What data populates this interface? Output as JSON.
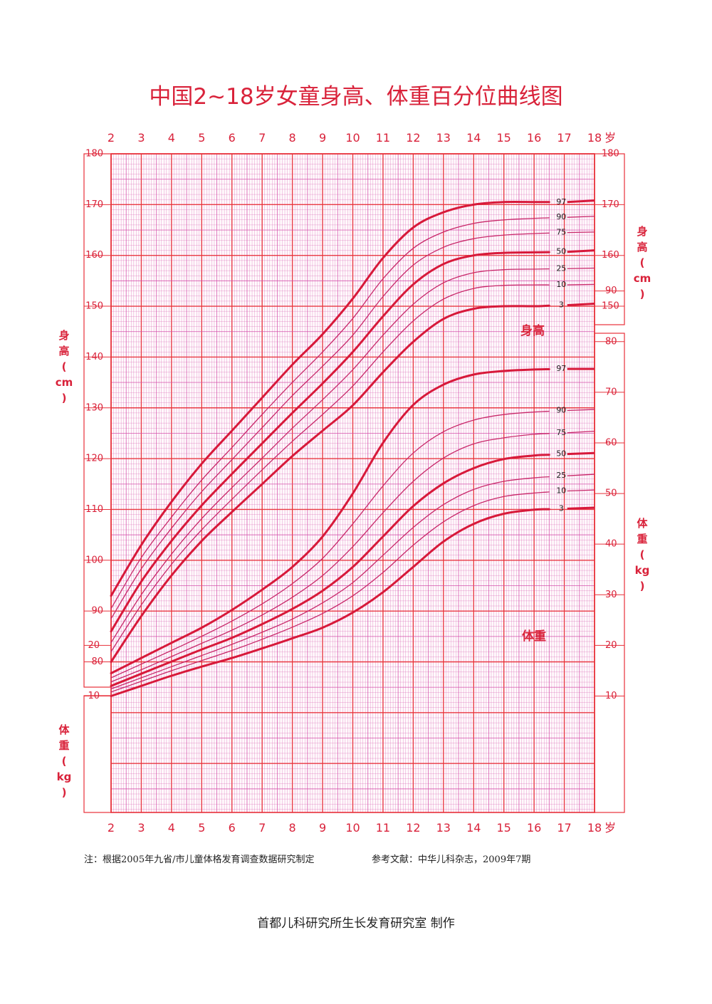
{
  "title": "中国2~18岁女童身高、体重百分位曲线图",
  "notes": {
    "source": "注：根据2005年九省/市儿童体格发育调查数据研究制定",
    "reference": "参考文献：中华儿科杂志，2009年7期",
    "maker": "首都儿科研究所生长发育研究室 制作"
  },
  "colors": {
    "grid_red": "#e8303a",
    "grid_magenta": "#d24aa8",
    "curve_bold": "#d7193a",
    "curve_thin": "#c8286a",
    "text": "#d9223a"
  },
  "chart_data": {
    "type": "line",
    "title": "中国2~18岁女童身高、体重百分位曲线图",
    "x": [
      2,
      3,
      4,
      5,
      6,
      7,
      8,
      9,
      10,
      11,
      12,
      13,
      14,
      15,
      16,
      17,
      18
    ],
    "x_unit": "岁",
    "xlim": [
      2,
      18
    ],
    "height_axis": {
      "label_chars": [
        "身",
        "高",
        "(",
        "cm",
        ")"
      ],
      "range": [
        70,
        180
      ],
      "ticks": [
        80,
        90,
        100,
        110,
        120,
        130,
        140,
        150,
        160,
        170,
        180
      ],
      "right_ticks": [
        150,
        160,
        170,
        180
      ]
    },
    "weight_axis": {
      "label_chars": [
        "体",
        "重",
        "(",
        "kg",
        ")"
      ],
      "range": [
        0,
        95
      ],
      "left_ticks": [
        10,
        20
      ],
      "right_ticks": [
        10,
        20,
        30,
        40,
        50,
        60,
        70,
        80,
        90
      ]
    },
    "height_label": "身高",
    "weight_label": "体重",
    "height_series": [
      {
        "name": "97",
        "bold": true,
        "values": [
          93,
          103,
          111.5,
          119,
          125.5,
          132,
          138.5,
          144.5,
          151.5,
          159.5,
          165.5,
          168.5,
          170,
          170.5,
          170.5,
          170.5,
          170.8
        ]
      },
      {
        "name": "90",
        "bold": false,
        "values": [
          90.5,
          100.5,
          108.5,
          115.8,
          122.2,
          128.7,
          135,
          141,
          147.6,
          155.4,
          161.4,
          164.6,
          166.3,
          167,
          167.3,
          167.5,
          167.7
        ]
      },
      {
        "name": "75",
        "bold": false,
        "values": [
          88.5,
          98.3,
          106.3,
          113.5,
          119.8,
          126.1,
          132.4,
          138.2,
          144.3,
          151.9,
          158.1,
          161.6,
          163.3,
          164,
          164.3,
          164.5,
          164.6
        ]
      },
      {
        "name": "50",
        "bold": true,
        "values": [
          86,
          95.8,
          103.8,
          110.8,
          117,
          123,
          129,
          134.8,
          141,
          148,
          154.3,
          158.3,
          160.0,
          160.5,
          160.6,
          160.7,
          161
        ]
      },
      {
        "name": "25",
        "bold": false,
        "values": [
          83.8,
          93.2,
          101.2,
          108.2,
          114.3,
          120.1,
          126.0,
          131.6,
          137.5,
          144.3,
          150.4,
          154.6,
          156.6,
          157.2,
          157.3,
          157.4,
          157.5
        ]
      },
      {
        "name": "10",
        "bold": false,
        "values": [
          82,
          91.2,
          99.2,
          106,
          112,
          117.8,
          123.4,
          128.7,
          134.3,
          141,
          147.1,
          151.4,
          153.5,
          154.1,
          154.2,
          154.2,
          154.3
        ]
      },
      {
        "name": "3",
        "bold": true,
        "values": [
          80,
          89,
          97,
          103.8,
          109.5,
          115,
          120.5,
          125.5,
          130.5,
          137,
          143,
          147.5,
          149.5,
          150,
          150,
          150.2,
          150.5
        ]
      }
    ],
    "weight_series": [
      {
        "name": "97",
        "bold": true,
        "values": [
          14.5,
          17.5,
          20.5,
          23.5,
          27,
          31,
          35.5,
          41.5,
          50,
          60,
          67.5,
          71.5,
          73.5,
          74.2,
          74.5,
          74.6,
          74.6
        ]
      },
      {
        "name": "90",
        "bold": false,
        "values": [
          13.6,
          16.3,
          19,
          21.8,
          24.8,
          28.2,
          32.2,
          37.2,
          44,
          51.5,
          58,
          62.2,
          64.5,
          65.6,
          66.1,
          66.4,
          66.6
        ]
      },
      {
        "name": "75",
        "bold": false,
        "values": [
          12.8,
          15.2,
          17.8,
          20.4,
          23,
          26,
          29.5,
          33.8,
          39.5,
          46.2,
          52.4,
          57,
          59.8,
          61,
          61.7,
          62,
          62.3
        ]
      },
      {
        "name": "50",
        "bold": true,
        "values": [
          12,
          14.4,
          16.8,
          19.2,
          21.5,
          24.2,
          27.2,
          30.8,
          35.5,
          41.5,
          47.5,
          52,
          55,
          56.8,
          57.5,
          57.8,
          58
        ]
      },
      {
        "name": "25",
        "bold": false,
        "values": [
          11.4,
          13.6,
          15.8,
          18,
          20.2,
          22.6,
          25.2,
          28.4,
          32.4,
          37.8,
          43.3,
          47.8,
          50.8,
          52.4,
          53.1,
          53.5,
          53.8
        ]
      },
      {
        "name": "10",
        "bold": false,
        "values": [
          10.8,
          12.9,
          15,
          17,
          19,
          21.2,
          23.6,
          26.3,
          29.8,
          34.4,
          39.8,
          44.4,
          47.6,
          49.4,
          50.1,
          50.5,
          50.7
        ]
      },
      {
        "name": "3",
        "bold": true,
        "values": [
          10,
          12,
          14,
          15.8,
          17.5,
          19.4,
          21.4,
          23.5,
          26.5,
          30.5,
          35.5,
          40.5,
          44,
          46,
          46.8,
          47,
          47.2
        ]
      }
    ]
  }
}
